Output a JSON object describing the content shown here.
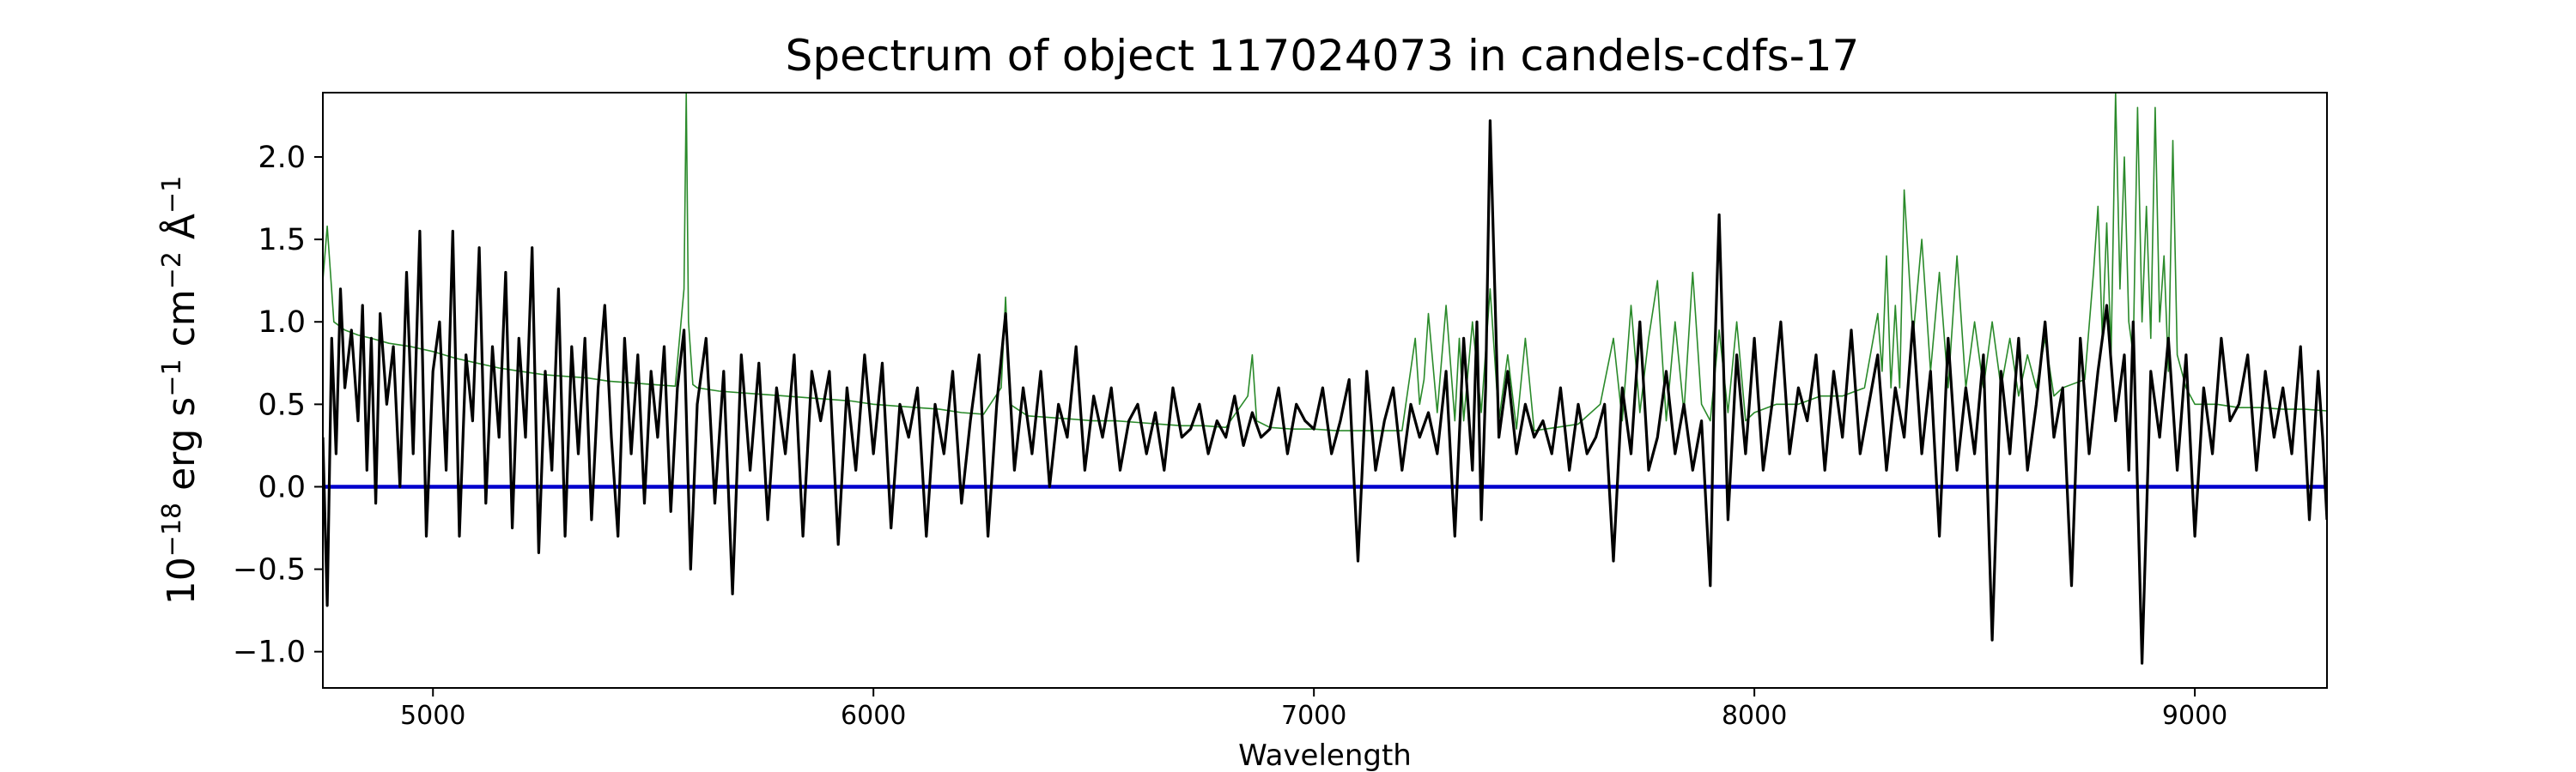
{
  "chart_data": {
    "type": "line",
    "title": "Spectrum of object 117024073 in candels-cdfs-17",
    "xlabel": "Wavelength",
    "ylabel": {
      "base": "10",
      "exp_base": "−18",
      "unit1": " erg s",
      "exp1": "−1",
      "unit2": " cm",
      "exp2": "−2",
      "unit3": " Å",
      "exp3": "−1"
    },
    "xlim": [
      4750,
      9300
    ],
    "ylim": [
      -1.22,
      2.39
    ],
    "x_ticks": [
      5000,
      6000,
      7000,
      8000,
      9000
    ],
    "x_tick_labels": [
      "5000",
      "6000",
      "7000",
      "8000",
      "9000"
    ],
    "y_ticks": [
      -1.0,
      -0.5,
      0.0,
      0.5,
      1.0,
      1.5,
      2.0
    ],
    "y_tick_labels": [
      "−1.0",
      "−0.5",
      "0.0",
      "0.5",
      "1.0",
      "1.5",
      "2.0"
    ],
    "grid": false,
    "colors": {
      "flux": "#000000",
      "error": "#2a8a2a",
      "zero": "#0000cc"
    },
    "series": [
      {
        "role": "flux",
        "x": [
          4750,
          4760,
          4770,
          4780,
          4790,
          4800,
          4815,
          4830,
          4840,
          4850,
          4860,
          4870,
          4880,
          4895,
          4910,
          4925,
          4940,
          4955,
          4970,
          4985,
          5000,
          5015,
          5030,
          5045,
          5060,
          5075,
          5090,
          5105,
          5120,
          5135,
          5150,
          5165,
          5180,
          5195,
          5210,
          5225,
          5240,
          5255,
          5270,
          5285,
          5300,
          5315,
          5330,
          5345,
          5360,
          5375,
          5390,
          5405,
          5420,
          5435,
          5450,
          5465,
          5480,
          5495,
          5510,
          5525,
          5540,
          5555,
          5570,
          5585,
          5600,
          5620,
          5640,
          5660,
          5680,
          5700,
          5720,
          5740,
          5760,
          5780,
          5800,
          5820,
          5840,
          5860,
          5880,
          5900,
          5920,
          5940,
          5960,
          5980,
          6000,
          6020,
          6040,
          6060,
          6080,
          6100,
          6120,
          6140,
          6160,
          6180,
          6200,
          6220,
          6240,
          6260,
          6280,
          6300,
          6320,
          6340,
          6360,
          6380,
          6400,
          6420,
          6440,
          6460,
          6480,
          6500,
          6520,
          6540,
          6560,
          6580,
          6600,
          6620,
          6640,
          6660,
          6680,
          6700,
          6720,
          6740,
          6760,
          6780,
          6800,
          6820,
          6840,
          6860,
          6880,
          6900,
          6920,
          6940,
          6960,
          6980,
          7000,
          7020,
          7040,
          7060,
          7080,
          7100,
          7120,
          7140,
          7160,
          7180,
          7200,
          7220,
          7240,
          7260,
          7280,
          7300,
          7320,
          7340,
          7360,
          7370,
          7380,
          7390,
          7400,
          7420,
          7440,
          7460,
          7480,
          7500,
          7520,
          7540,
          7560,
          7580,
          7600,
          7620,
          7640,
          7660,
          7680,
          7700,
          7720,
          7740,
          7760,
          7780,
          7800,
          7820,
          7840,
          7860,
          7880,
          7900,
          7910,
          7920,
          7940,
          7960,
          7980,
          8000,
          8020,
          8040,
          8060,
          8080,
          8100,
          8120,
          8140,
          8160,
          8180,
          8200,
          8220,
          8240,
          8260,
          8280,
          8300,
          8320,
          8340,
          8360,
          8380,
          8400,
          8420,
          8440,
          8460,
          8480,
          8500,
          8520,
          8540,
          8560,
          8580,
          8600,
          8620,
          8640,
          8660,
          8680,
          8700,
          8720,
          8740,
          8760,
          8780,
          8800,
          8820,
          8840,
          8850,
          8860,
          8880,
          8900,
          8920,
          8940,
          8960,
          8980,
          9000,
          9020,
          9040,
          9060,
          9080,
          9100,
          9120,
          9140,
          9160,
          9180,
          9200,
          9220,
          9240,
          9260,
          9280,
          9290,
          9300
        ],
        "y": [
          0.3,
          -0.72,
          0.9,
          0.2,
          1.2,
          0.6,
          0.95,
          0.4,
          1.1,
          0.1,
          0.9,
          -0.1,
          1.05,
          0.5,
          0.85,
          0.0,
          1.3,
          0.2,
          1.55,
          -0.3,
          0.7,
          1.0,
          0.1,
          1.55,
          -0.3,
          0.8,
          0.4,
          1.45,
          -0.1,
          0.85,
          0.3,
          1.3,
          -0.25,
          0.9,
          0.3,
          1.45,
          -0.4,
          0.7,
          0.1,
          1.2,
          -0.3,
          0.85,
          0.2,
          0.9,
          -0.2,
          0.6,
          1.1,
          0.3,
          -0.3,
          0.9,
          0.2,
          0.8,
          -0.1,
          0.7,
          0.3,
          0.85,
          -0.15,
          0.6,
          0.95,
          -0.5,
          0.5,
          0.9,
          -0.1,
          0.7,
          -0.65,
          0.8,
          0.1,
          0.75,
          -0.2,
          0.6,
          0.2,
          0.8,
          -0.3,
          0.7,
          0.4,
          0.7,
          -0.35,
          0.6,
          0.1,
          0.8,
          0.2,
          0.75,
          -0.25,
          0.5,
          0.3,
          0.6,
          -0.3,
          0.5,
          0.2,
          0.7,
          -0.1,
          0.4,
          0.8,
          -0.3,
          0.5,
          1.05,
          0.1,
          0.6,
          0.2,
          0.7,
          0.0,
          0.5,
          0.3,
          0.85,
          0.1,
          0.55,
          0.3,
          0.6,
          0.1,
          0.4,
          0.5,
          0.2,
          0.45,
          0.1,
          0.6,
          0.3,
          0.35,
          0.5,
          0.2,
          0.4,
          0.3,
          0.55,
          0.25,
          0.45,
          0.3,
          0.35,
          0.6,
          0.2,
          0.5,
          0.4,
          0.35,
          0.6,
          0.2,
          0.4,
          0.65,
          -0.45,
          0.7,
          0.1,
          0.4,
          0.6,
          0.1,
          0.5,
          0.3,
          0.45,
          0.2,
          0.7,
          -0.3,
          0.9,
          0.1,
          1.0,
          -0.2,
          0.6,
          2.22,
          0.3,
          0.7,
          0.2,
          0.5,
          0.3,
          0.4,
          0.2,
          0.6,
          0.1,
          0.5,
          0.2,
          0.3,
          0.5,
          -0.45,
          0.6,
          0.2,
          1.0,
          0.1,
          0.3,
          0.7,
          0.2,
          0.5,
          0.1,
          0.4,
          -0.6,
          0.8,
          1.65,
          -0.2,
          0.8,
          0.2,
          0.9,
          0.1,
          0.5,
          1.0,
          0.2,
          0.6,
          0.4,
          0.8,
          0.1,
          0.7,
          0.3,
          0.95,
          0.2,
          0.5,
          0.8,
          0.1,
          0.6,
          0.3,
          1.0,
          0.2,
          0.7,
          -0.3,
          0.9,
          0.1,
          0.6,
          0.2,
          0.8,
          -0.93,
          0.7,
          0.2,
          0.9,
          0.1,
          0.5,
          1.0,
          0.3,
          0.6,
          -0.6,
          0.9,
          0.2,
          0.7,
          1.1,
          0.4,
          0.8,
          0.1,
          1.0,
          -1.07,
          0.7,
          0.3,
          0.9,
          0.1,
          0.8,
          -0.3,
          0.6,
          0.2,
          0.9,
          0.4,
          0.5,
          0.8,
          0.1,
          0.7,
          0.3,
          0.6,
          0.2,
          0.85,
          -0.2,
          0.7,
          0.3,
          -0.2
        ]
      },
      {
        "role": "error",
        "x": [
          4750,
          4760,
          4775,
          4800,
          4830,
          4860,
          4900,
          4950,
          5000,
          5050,
          5100,
          5150,
          5200,
          5250,
          5300,
          5350,
          5400,
          5450,
          5500,
          5550,
          5570,
          5575,
          5580,
          5590,
          5600,
          5650,
          5700,
          5750,
          5800,
          5850,
          5900,
          5950,
          6000,
          6050,
          6100,
          6150,
          6200,
          6250,
          6290,
          6300,
          6310,
          6350,
          6400,
          6450,
          6500,
          6550,
          6600,
          6650,
          6700,
          6750,
          6800,
          6850,
          6860,
          6870,
          6900,
          6950,
          7000,
          7050,
          7100,
          7150,
          7200,
          7230,
          7240,
          7250,
          7260,
          7280,
          7300,
          7320,
          7330,
          7340,
          7360,
          7380,
          7400,
          7420,
          7440,
          7460,
          7480,
          7500,
          7550,
          7600,
          7650,
          7680,
          7700,
          7720,
          7740,
          7760,
          7780,
          7800,
          7820,
          7840,
          7860,
          7880,
          7900,
          7920,
          7940,
          7960,
          7980,
          8000,
          8050,
          8100,
          8150,
          8200,
          8250,
          8280,
          8290,
          8300,
          8310,
          8320,
          8330,
          8340,
          8360,
          8380,
          8400,
          8420,
          8440,
          8460,
          8480,
          8500,
          8520,
          8540,
          8560,
          8580,
          8600,
          8620,
          8640,
          8660,
          8680,
          8700,
          8750,
          8770,
          8780,
          8790,
          8800,
          8810,
          8820,
          8830,
          8840,
          8850,
          8860,
          8870,
          8880,
          8890,
          8900,
          8910,
          8920,
          8930,
          8940,
          8950,
          8960,
          8980,
          9000,
          9050,
          9100,
          9150,
          9200,
          9250,
          9300
        ],
        "y": [
          1.25,
          1.58,
          1.0,
          0.95,
          0.92,
          0.9,
          0.87,
          0.85,
          0.82,
          0.78,
          0.75,
          0.72,
          0.7,
          0.68,
          0.67,
          0.66,
          0.64,
          0.63,
          0.62,
          0.61,
          1.2,
          2.39,
          1.0,
          0.62,
          0.6,
          0.58,
          0.57,
          0.56,
          0.55,
          0.54,
          0.53,
          0.52,
          0.5,
          0.49,
          0.48,
          0.47,
          0.45,
          0.44,
          0.6,
          1.15,
          0.5,
          0.43,
          0.42,
          0.41,
          0.4,
          0.4,
          0.39,
          0.38,
          0.37,
          0.37,
          0.36,
          0.55,
          0.8,
          0.4,
          0.36,
          0.35,
          0.35,
          0.34,
          0.34,
          0.34,
          0.34,
          0.9,
          0.5,
          0.65,
          1.05,
          0.45,
          1.1,
          0.4,
          0.9,
          0.4,
          1.0,
          0.45,
          1.2,
          0.4,
          0.8,
          0.35,
          0.9,
          0.34,
          0.36,
          0.38,
          0.5,
          0.9,
          0.4,
          1.1,
          0.45,
          0.9,
          1.25,
          0.4,
          1.0,
          0.45,
          1.3,
          0.5,
          0.4,
          0.95,
          0.45,
          1.0,
          0.4,
          0.45,
          0.5,
          0.5,
          0.55,
          0.55,
          0.6,
          1.05,
          0.7,
          1.4,
          0.6,
          1.1,
          0.6,
          1.8,
          0.9,
          1.5,
          0.7,
          1.3,
          0.6,
          1.4,
          0.6,
          1.0,
          0.6,
          1.0,
          0.6,
          0.9,
          0.55,
          0.8,
          0.6,
          0.9,
          0.55,
          0.6,
          0.65,
          1.3,
          1.7,
          0.9,
          1.6,
          0.8,
          2.39,
          1.2,
          2.0,
          1.0,
          0.8,
          2.3,
          1.0,
          1.7,
          0.9,
          2.3,
          1.0,
          1.4,
          0.7,
          2.1,
          0.8,
          0.6,
          0.5,
          0.5,
          0.48,
          0.48,
          0.47,
          0.47,
          0.46
        ]
      },
      {
        "role": "zero",
        "x": [
          4750,
          9300
        ],
        "y": [
          0.0,
          0.0
        ]
      }
    ]
  }
}
